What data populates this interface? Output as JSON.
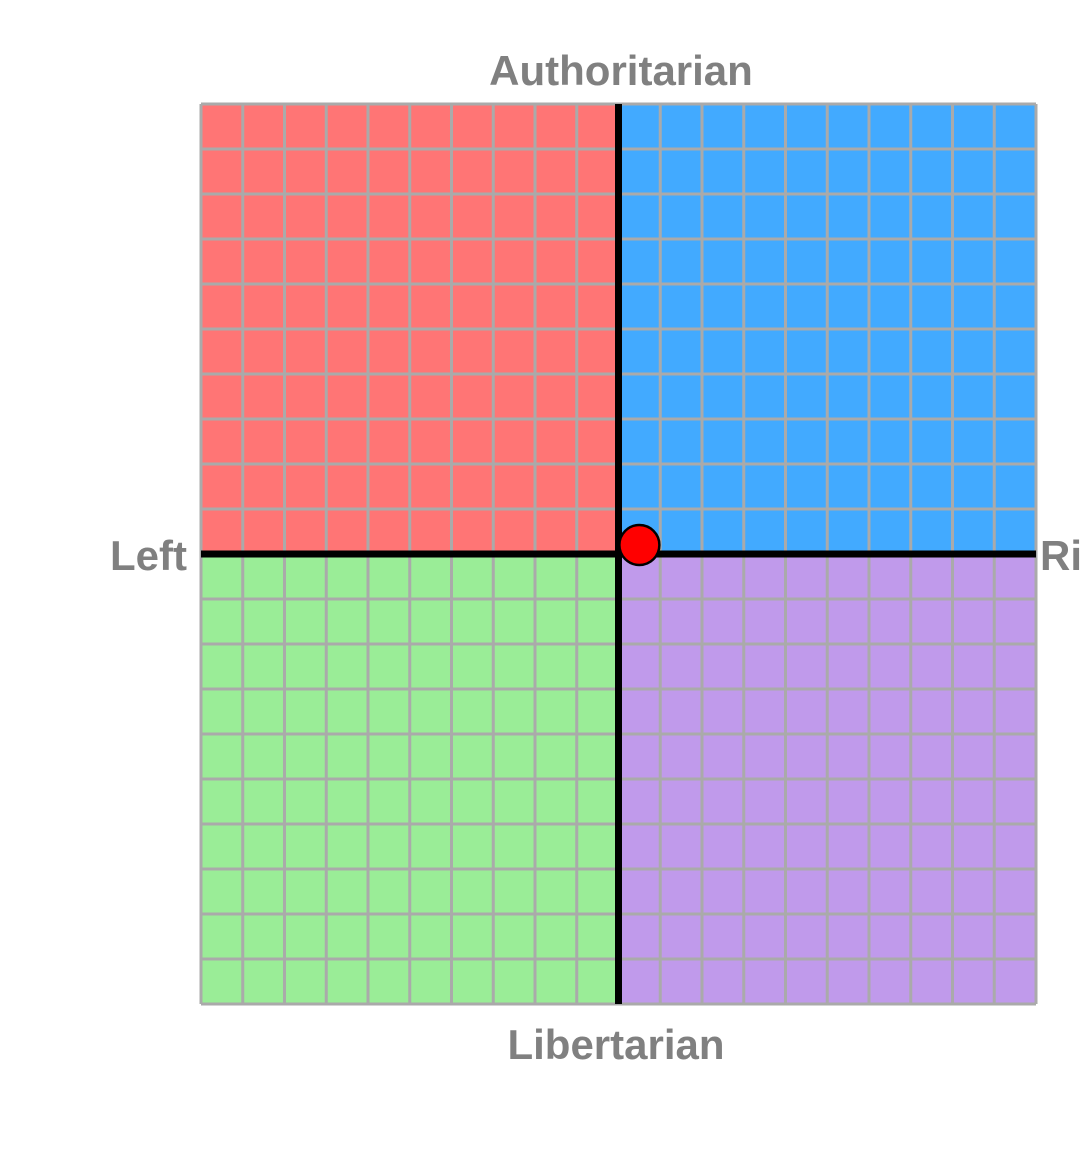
{
  "chart_data": {
    "type": "scatter",
    "top_label": "Authoritarian",
    "bottom_label": "Libertarian",
    "left_label": "Left",
    "right_label": "Ri",
    "x": [
      0.5
    ],
    "values": [
      0.2
    ],
    "color": "#ff0000",
    "xlim": [
      -10,
      10
    ],
    "ylim": [
      -10,
      10
    ],
    "xticks": [
      -10,
      -9,
      -8,
      -7,
      -6,
      -5,
      -4,
      -3,
      -2,
      -1,
      0,
      1,
      2,
      3,
      4,
      5,
      6,
      7,
      8,
      9,
      10
    ],
    "yticks": [
      -10,
      -9,
      -8,
      -7,
      -6,
      -5,
      -4,
      -3,
      -2,
      -1,
      0,
      1,
      2,
      3,
      4,
      5,
      6,
      7,
      8,
      9,
      10
    ],
    "grid": true,
    "quadrant_colors": [
      "#ff7575",
      "#42aaff",
      "#9aed97",
      "#c09aeb"
    ]
  }
}
